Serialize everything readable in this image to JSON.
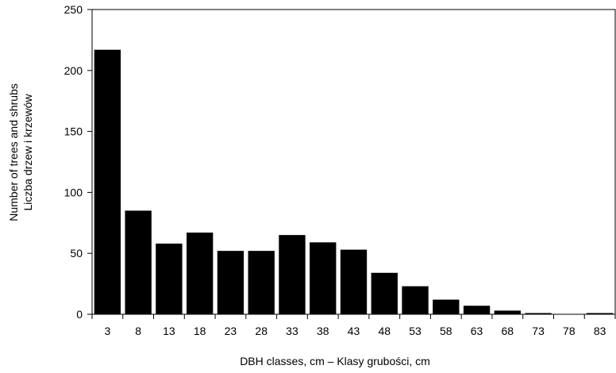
{
  "chart_data": {
    "type": "bar",
    "categories": [
      "3",
      "8",
      "13",
      "18",
      "23",
      "28",
      "33",
      "38",
      "43",
      "48",
      "53",
      "58",
      "63",
      "68",
      "73",
      "78",
      "83"
    ],
    "values": [
      217,
      85,
      58,
      67,
      52,
      52,
      65,
      59,
      53,
      34,
      23,
      12,
      7,
      3,
      1,
      0,
      1
    ],
    "y_ticks": [
      "0",
      "50",
      "100",
      "150",
      "200",
      "250"
    ],
    "ylim": [
      0,
      250
    ],
    "xlabel": "DBH classes, cm – Klasy grubości, cm",
    "ylabel": [
      "Number of trees and shrubs",
      "Liczba drzew i krzewów"
    ],
    "title": "",
    "grid": false,
    "bar_color": "#000000",
    "axis_color": "#000000"
  }
}
